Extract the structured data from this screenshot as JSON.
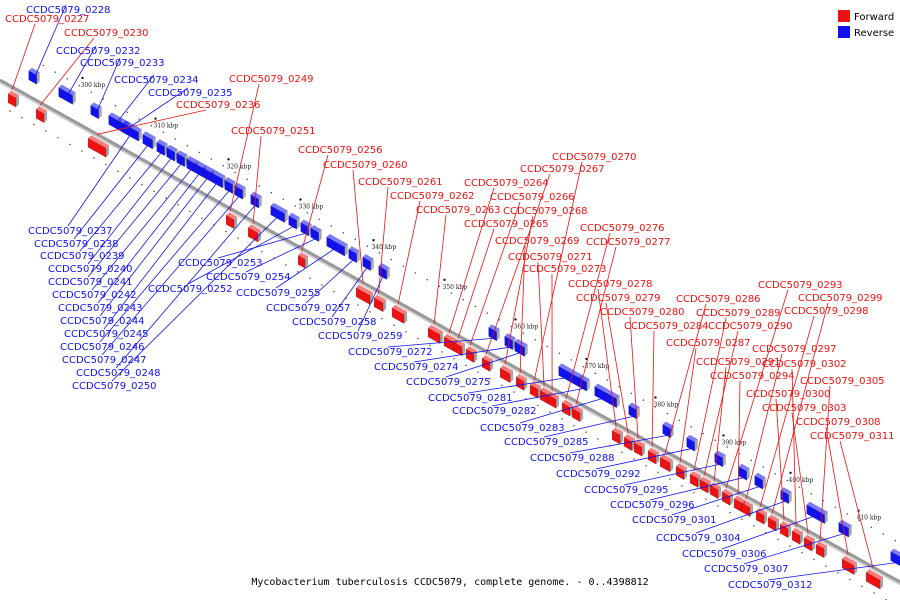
{
  "colors": {
    "forward": "#ee1111",
    "reverse": "#1111ee",
    "axis": "#999999"
  },
  "legend": [
    {
      "label": "Forward",
      "color": "#ee1111"
    },
    {
      "label": "Reverse",
      "color": "#1111ee"
    }
  ],
  "caption": "Mycobacterium tuberculosis CCDC5079, complete genome. - 0..4398812",
  "ticks": [
    "300 kbp",
    "310 kbp",
    "320 kbp",
    "330 kbp",
    "340 kbp",
    "350 kbp",
    "360 kbp",
    "370 kbp",
    "380 kbp",
    "390 kbp",
    "400 kbp",
    "410 kbp"
  ],
  "forward_genes": [
    "CCDC5079_0227",
    "CCDC5079_0230",
    "CCDC5079_0236",
    "CCDC5079_0249",
    "CCDC5079_0251",
    "CCDC5079_0256",
    "CCDC5079_0260",
    "CCDC5079_0261",
    "CCDC5079_0262",
    "CCDC5079_0263",
    "CCDC5079_0264",
    "CCDC5079_0265",
    "CCDC5079_0266",
    "CCDC5079_0267",
    "CCDC5079_0268",
    "CCDC5079_0269",
    "CCDC5079_0270",
    "CCDC5079_0271",
    "CCDC5079_0273",
    "CCDC5079_0276",
    "CCDC5079_0277",
    "CCDC5079_0278",
    "CCDC5079_0279",
    "CCDC5079_0280",
    "CCDC5079_0284",
    "CCDC5079_0286",
    "CCDC5079_0287",
    "CCDC5079_0289",
    "CCDC5079_0290",
    "CCDC5079_0291",
    "CCDC5079_0293",
    "CCDC5079_0294",
    "CCDC5079_0297",
    "CCDC5079_0298",
    "CCDC5079_0299",
    "CCDC5079_0300",
    "CCDC5079_0302",
    "CCDC5079_0303",
    "CCDC5079_0305",
    "CCDC5079_0308",
    "CCDC5079_0311"
  ],
  "reverse_genes": [
    "CCDC5079_0228",
    "CCDC5079_0232",
    "CCDC5079_0233",
    "CCDC5079_0234",
    "CCDC5079_0235",
    "CCDC5079_0237",
    "CCDC5079_0238",
    "CCDC5079_0239",
    "CCDC5079_0240",
    "CCDC5079_0241",
    "CCDC5079_0242",
    "CCDC5079_0243",
    "CCDC5079_0244",
    "CCDC5079_0245",
    "CCDC5079_0246",
    "CCDC5079_0247",
    "CCDC5079_0248",
    "CCDC5079_0250",
    "CCDC5079_0252",
    "CCDC5079_0253",
    "CCDC5079_0254",
    "CCDC5079_0255",
    "CCDC5079_0257",
    "CCDC5079_0258",
    "CCDC5079_0259",
    "CCDC5079_0272",
    "CCDC5079_0274",
    "CCDC5079_0275",
    "CCDC5079_0281",
    "CCDC5079_0282",
    "CCDC5079_0283",
    "CCDC5079_0285",
    "CCDC5079_0288",
    "CCDC5079_0292",
    "CCDC5079_0295",
    "CCDC5079_0296",
    "CCDC5079_0301",
    "CCDC5079_0304",
    "CCDC5079_0306",
    "CCDC5079_0307",
    "CCDC5079_0312"
  ]
}
